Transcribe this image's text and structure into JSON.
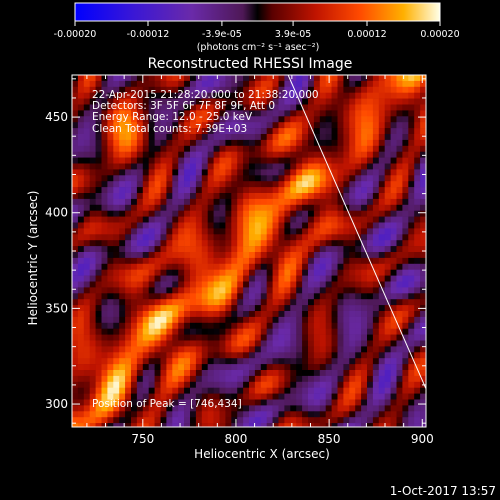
{
  "chart_data": {
    "type": "heatmap",
    "title": "Reconstructed RHESSI Image",
    "xlabel": "Heliocentric X (arcsec)",
    "ylabel": "Heliocentric Y (arcsec)",
    "xlim": [
      712,
      902
    ],
    "ylim": [
      288,
      472
    ],
    "x_ticks": [
      750,
      800,
      850,
      900
    ],
    "y_ticks": [
      300,
      350,
      400,
      450
    ],
    "x_tick_labels": [
      "750",
      "800",
      "850",
      "900"
    ],
    "y_tick_labels": [
      "300",
      "350",
      "400",
      "450"
    ],
    "colorbar": {
      "range": [
        -0.0002,
        0.0002
      ],
      "tick_values": [
        -0.0002,
        -0.00012,
        -3.9e-05,
        3.9e-05,
        0.00012,
        0.0002
      ],
      "tick_labels": [
        "-0.00020",
        "-0.00012",
        "-3.9e-05",
        "3.9e-05",
        "0.00012",
        "0.00020"
      ],
      "units": "(photons cm⁻² s⁻¹ asec⁻²)"
    },
    "annotations": [
      "22-Apr-2015 21:28:20.000 to 21:38:20.000",
      "Detectors: 3F 5F 6F 7F 8F 9F, Att 0",
      "Energy Range: 12.0 - 25.0 keV",
      "Clean   Total counts: 7.39E+03"
    ],
    "peak_label": "Position of Peak = [746,434]",
    "limb_line": [
      [
        828,
        472
      ],
      [
        902,
        308
      ]
    ],
    "grid": false
  },
  "footer": {
    "date": "1-Oct-2017 13:57"
  },
  "colors": {
    "background": "#000000",
    "foreground": "#ffffff"
  }
}
